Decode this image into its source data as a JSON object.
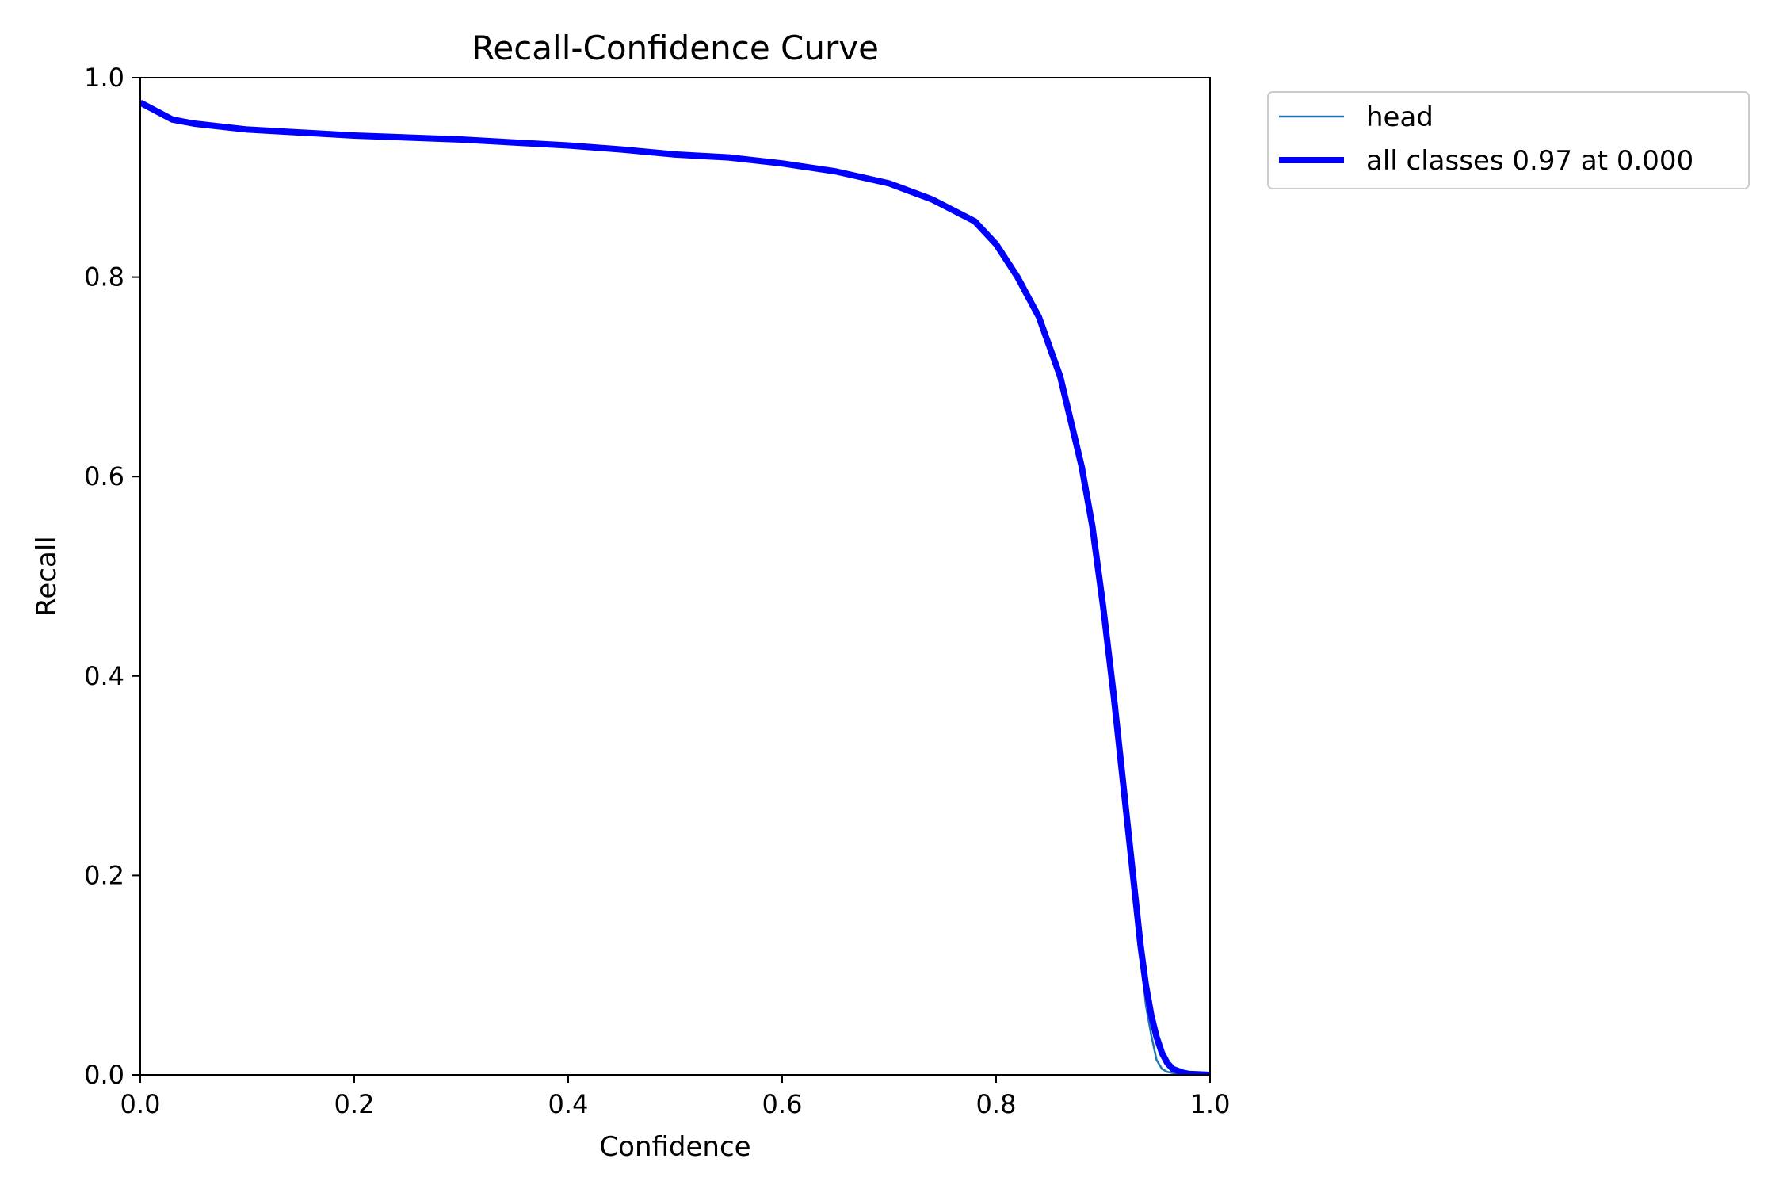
{
  "chart_data": {
    "type": "line",
    "title": "Recall-Confidence Curve",
    "xlabel": "Confidence",
    "ylabel": "Recall",
    "xlim": [
      0,
      1
    ],
    "ylim": [
      0,
      1
    ],
    "grid": false,
    "legend_position": "outside-top-right",
    "x_ticks": [
      "0.0",
      "0.2",
      "0.4",
      "0.6",
      "0.8",
      "1.0"
    ],
    "y_ticks": [
      "0.0",
      "0.2",
      "0.4",
      "0.6",
      "0.8",
      "1.0"
    ],
    "series": [
      {
        "name": "head",
        "color": "#1f77b4",
        "x": [
          0.0,
          0.03,
          0.05,
          0.1,
          0.2,
          0.3,
          0.4,
          0.45,
          0.5,
          0.55,
          0.6,
          0.65,
          0.7,
          0.74,
          0.78,
          0.8,
          0.82,
          0.84,
          0.86,
          0.88,
          0.89,
          0.9,
          0.91,
          0.92,
          0.93,
          0.935,
          0.94,
          0.945,
          0.95,
          0.955,
          0.96,
          0.97,
          0.98,
          0.99,
          1.0
        ],
        "y": [
          0.975,
          0.958,
          0.954,
          0.948,
          0.942,
          0.938,
          0.932,
          0.928,
          0.923,
          0.92,
          0.914,
          0.906,
          0.894,
          0.878,
          0.856,
          0.833,
          0.8,
          0.76,
          0.7,
          0.61,
          0.55,
          0.47,
          0.38,
          0.28,
          0.18,
          0.12,
          0.07,
          0.04,
          0.015,
          0.006,
          0.003,
          0.001,
          0.0,
          0.0,
          0.0
        ]
      },
      {
        "name": "all classes 0.97 at 0.000",
        "color": "#0000ff",
        "x": [
          0.0,
          0.03,
          0.05,
          0.1,
          0.2,
          0.3,
          0.4,
          0.45,
          0.5,
          0.55,
          0.6,
          0.65,
          0.7,
          0.74,
          0.78,
          0.8,
          0.82,
          0.84,
          0.86,
          0.88,
          0.89,
          0.9,
          0.91,
          0.92,
          0.93,
          0.935,
          0.94,
          0.945,
          0.95,
          0.955,
          0.96,
          0.965,
          0.97,
          0.975,
          0.98,
          0.99,
          1.0
        ],
        "y": [
          0.975,
          0.958,
          0.954,
          0.948,
          0.942,
          0.938,
          0.932,
          0.928,
          0.923,
          0.92,
          0.914,
          0.906,
          0.894,
          0.878,
          0.856,
          0.833,
          0.8,
          0.76,
          0.7,
          0.61,
          0.55,
          0.47,
          0.38,
          0.28,
          0.18,
          0.13,
          0.09,
          0.06,
          0.038,
          0.022,
          0.012,
          0.006,
          0.004,
          0.002,
          0.001,
          0.0005,
          0.0
        ]
      }
    ]
  }
}
